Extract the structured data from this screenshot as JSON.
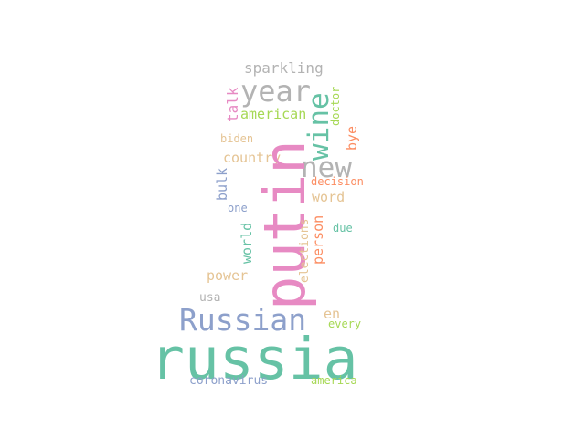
{
  "words": {
    "russia": {
      "text": "russia",
      "color": "#66c2a5"
    },
    "putin": {
      "text": "putin",
      "color": "#e78ac3"
    },
    "russian": {
      "text": "Russian",
      "color": "#8da0cb"
    },
    "year": {
      "text": "year",
      "color": "#b3b3b3"
    },
    "new": {
      "text": "new",
      "color": "#b3b3b3"
    },
    "wine": {
      "text": "wine",
      "color": "#66c2a5"
    },
    "sparkling": {
      "text": "sparkling",
      "color": "#b3b3b3"
    },
    "talk": {
      "text": "talk",
      "color": "#e78ac3"
    },
    "american": {
      "text": "american",
      "color": "#a6d854"
    },
    "doctor": {
      "text": "doctor",
      "color": "#a6d854"
    },
    "bye": {
      "text": "bye",
      "color": "#fc8d62"
    },
    "biden": {
      "text": "biden",
      "color": "#e5c494"
    },
    "country": {
      "text": "country",
      "color": "#e5c494"
    },
    "bulk": {
      "text": "bulk",
      "color": "#8da0cb"
    },
    "decision": {
      "text": "decision",
      "color": "#fc8d62"
    },
    "word": {
      "text": "word",
      "color": "#e5c494"
    },
    "one": {
      "text": "one",
      "color": "#8da0cb"
    },
    "world": {
      "text": "world",
      "color": "#66c2a5"
    },
    "elections": {
      "text": "elections",
      "color": "#e5c494"
    },
    "person": {
      "text": "person",
      "color": "#fc8d62"
    },
    "due": {
      "text": "due",
      "color": "#66c2a5"
    },
    "power": {
      "text": "power",
      "color": "#e5c494"
    },
    "usa": {
      "text": "usa",
      "color": "#b3b3b3"
    },
    "en": {
      "text": "en",
      "color": "#e5c494"
    },
    "every": {
      "text": "every",
      "color": "#a6d854"
    },
    "coronavirus": {
      "text": "coronavirus",
      "color": "#8da0cb"
    },
    "america": {
      "text": "america",
      "color": "#a6d854"
    }
  }
}
